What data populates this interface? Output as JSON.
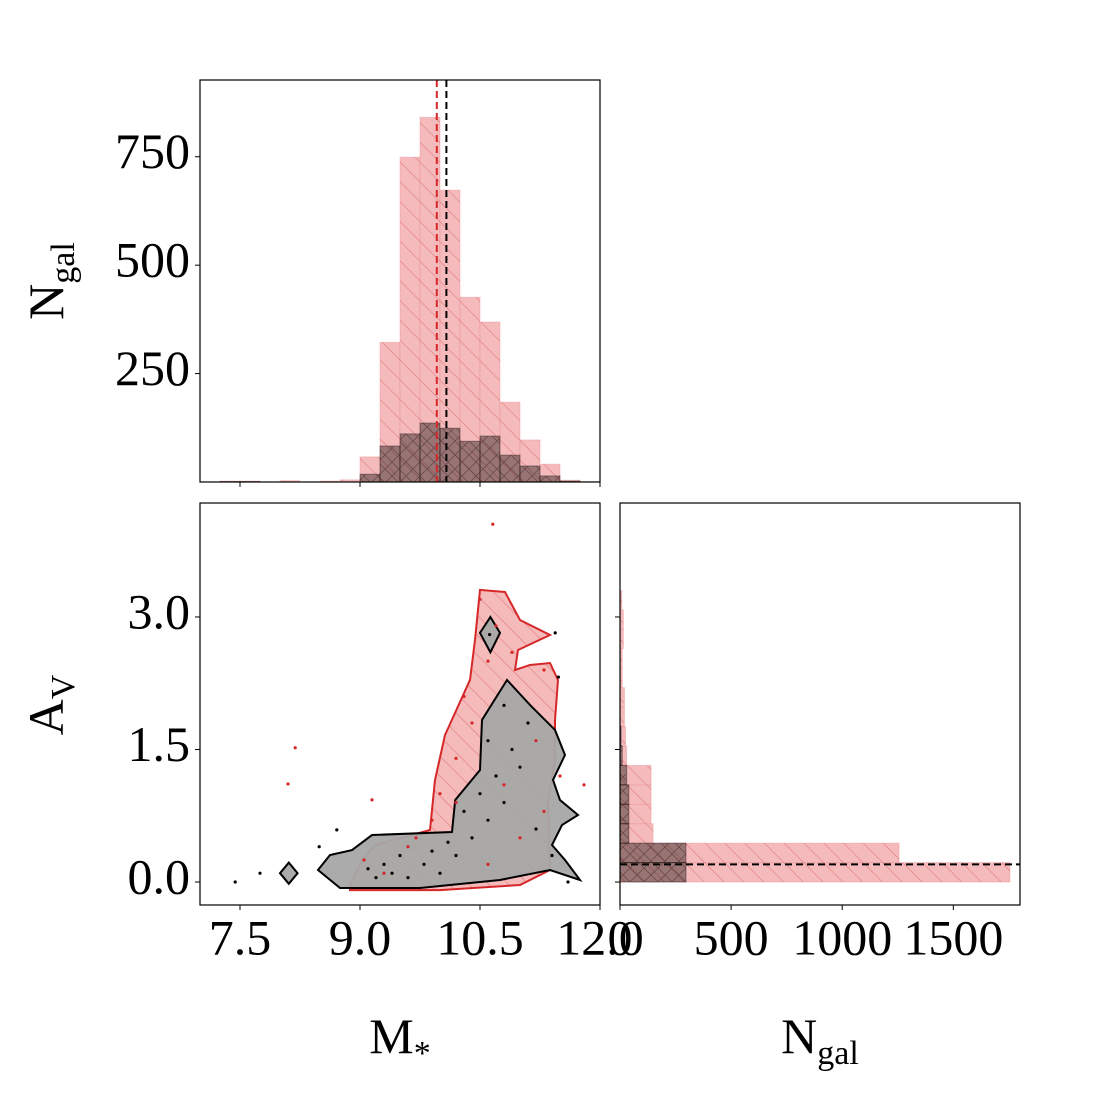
{
  "chart_data": [
    {
      "type": "histogram",
      "orientation": "vertical",
      "ylabel": {
        "text": "N",
        "sub": "gal"
      },
      "xlim": [
        7.0,
        12.0
      ],
      "ylim": [
        0,
        927
      ],
      "xticks": [
        7.5,
        9,
        10.5,
        12
      ],
      "yticks": [
        250,
        500,
        750
      ],
      "bins": [
        7.0,
        7.25,
        7.5,
        7.75,
        8.0,
        8.25,
        8.5,
        8.75,
        9.0,
        9.25,
        9.5,
        9.75,
        10.0,
        10.25,
        10.5,
        10.75,
        11.0,
        11.25,
        11.5,
        11.75,
        12.0
      ],
      "series": [
        {
          "color": "#e8878a",
          "hatch": "diag",
          "values": [
            0,
            2,
            2,
            0,
            3,
            0,
            2,
            5,
            58,
            322,
            749,
            841,
            673,
            426,
            369,
            184,
            97,
            41,
            4,
            1
          ]
        },
        {
          "color": "#000000",
          "hatch": "cross",
          "values": [
            0,
            1,
            1,
            0,
            0,
            0,
            0,
            0,
            18,
            83,
            111,
            136,
            124,
            94,
            106,
            62,
            37,
            14,
            2,
            0
          ]
        }
      ],
      "vlines": [
        {
          "value": 9.96,
          "color": "#d62728"
        },
        {
          "value": 10.08,
          "color": "#000000"
        }
      ]
    },
    {
      "type": "contour-scatter",
      "xlabel": {
        "text": "M",
        "sub": "*"
      },
      "ylabel": {
        "text": "A",
        "sub": "V"
      },
      "xlim": [
        7.0,
        12.0
      ],
      "ylim": [
        -0.26,
        4.29
      ],
      "xticks": [
        7.5,
        {
          "value": 9,
          "label": "9.0"
        },
        10.5,
        {
          "value": 12,
          "label": "12.0"
        }
      ],
      "yticks": [
        {
          "value": 0,
          "label": "0.0"
        },
        1.5,
        {
          "value": 3,
          "label": "3.0"
        }
      ],
      "series": [
        {
          "color": "#d62728",
          "fill": "#f4b6b6",
          "hatch": "diag",
          "contours": [
            {
              "x": [
                8.875,
                9.025,
                9.1875,
                9.875,
                9.9375,
                10.0625,
                10.375,
                10.4375,
                10.5,
                10.8125,
                11.0,
                11.375,
                10.975,
                10.9375,
                11.125,
                11.375,
                11.475,
                11.4375,
                11.4375,
                11.35,
                11.375,
                11.0,
                10.0,
                8.875
              ],
              "y": [
                -0.034,
                0.249,
                0.419,
                0.589,
                1.155,
                1.664,
                2.287,
                2.74,
                3.306,
                3.283,
                2.966,
                2.796,
                2.626,
                2.4,
                2.457,
                2.479,
                2.287,
                1.834,
                1.381,
                0.928,
                0.136,
                -0.034,
                -0.091,
                -0.091
              ]
            }
          ],
          "x": [
            10.66,
            8.19,
            8.1,
            9.15,
            10.5,
            10.7,
            10.6,
            10.3,
            10.9,
            11.3,
            10.2,
            10.4,
            10.0,
            9.9,
            10.8,
            11.0,
            11.3,
            9.6,
            9.3,
            9.05,
            10.6,
            11.2,
            11.5,
            11.8,
            9.7,
            10.2
          ],
          "y": [
            4.05,
            1.52,
            1.11,
            0.93,
            3.2,
            2.9,
            2.5,
            2.1,
            2.6,
            2.4,
            1.4,
            1.8,
            1.0,
            0.7,
            1.1,
            0.5,
            0.8,
            0.4,
            0.1,
            0.25,
            0.2,
            1.6,
            1.2,
            1.1,
            0.5,
            0.9
          ]
        },
        {
          "color": "#000000",
          "fill": "#a6a6a6",
          "hatch": "none",
          "contours": [
            {
              "x": [
                8.475,
                8.625,
                8.9,
                9.15,
                10.15,
                10.19,
                10.5,
                10.525,
                10.8375,
                11.125,
                11.4375,
                11.5625,
                11.4125,
                11.5,
                11.725,
                11.525,
                11.4,
                11.5625,
                11.75,
                11.375,
                10.75,
                9.75,
                8.75
              ],
              "y": [
                0.136,
                0.306,
                0.362,
                0.532,
                0.566,
                0.928,
                1.268,
                1.834,
                2.287,
                2.004,
                1.721,
                1.438,
                1.155,
                0.928,
                0.759,
                0.645,
                0.419,
                0.249,
                0.023,
                0.136,
                0.023,
                -0.068,
                -0.068
              ]
            },
            {
              "x": [
                8.0,
                8.11,
                8.22,
                8.11
              ],
              "y": [
                0.1,
                0.22,
                0.1,
                -0.02
              ]
            },
            {
              "x": [
                10.5,
                10.63,
                10.75,
                10.63
              ],
              "y": [
                2.82,
                3.0,
                2.82,
                2.6
              ]
            }
          ],
          "x": [
            7.44,
            7.75,
            8.49,
            8.71,
            9.2,
            9.4,
            9.6,
            9.8,
            10.0,
            10.2,
            9.5,
            9.3,
            10.4,
            10.6,
            10.5,
            10.7,
            10.8,
            10.9,
            11.0,
            10.6,
            11.1,
            10.8,
            11.2,
            11.4,
            11.6,
            10.3,
            10.62,
            11.44,
            11.48,
            9.1,
            9.9,
            10.1
          ],
          "y": [
            0.0,
            0.1,
            0.4,
            0.59,
            0.05,
            0.1,
            0.05,
            0.2,
            0.1,
            0.3,
            0.3,
            0.2,
            0.5,
            0.7,
            1.0,
            1.2,
            0.9,
            1.5,
            1.3,
            1.6,
            1.8,
            2.0,
            0.6,
            0.3,
            0.0,
            0.8,
            2.8,
            2.82,
            2.32,
            0.15,
            0.35,
            0.45
          ]
        }
      ]
    },
    {
      "type": "histogram",
      "orientation": "horizontal",
      "xlabel": {
        "text": "N",
        "sub": "gal"
      },
      "xlim": [
        0,
        1800
      ],
      "ylim": [
        -0.26,
        4.29
      ],
      "xticks": [
        0,
        500,
        1000,
        1500
      ],
      "yticks": [
        0,
        1.5,
        3
      ],
      "bins": [
        0,
        0.22,
        0.44,
        0.66,
        0.88,
        1.1,
        1.32,
        1.54,
        1.76,
        1.98,
        2.2,
        2.42,
        2.64,
        2.86,
        3.08,
        3.3
      ],
      "series": [
        {
          "color": "#e8878a",
          "hatch": "diag",
          "values": [
            1755,
            1256,
            149,
            140,
            140,
            140,
            30,
            25,
            20,
            20,
            10,
            10,
            15,
            15,
            8
          ]
        },
        {
          "color": "#000000",
          "hatch": "cross",
          "values": [
            297,
            297,
            40,
            40,
            40,
            30,
            10,
            5,
            0,
            0,
            0,
            0,
            0,
            0,
            0
          ]
        }
      ],
      "hlines": [
        {
          "value": 0.2,
          "color": "#000000"
        }
      ]
    }
  ]
}
